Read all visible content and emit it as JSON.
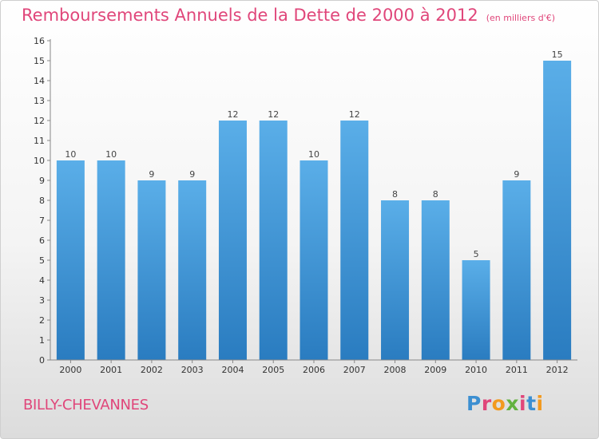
{
  "title": "Remboursements Annuels de la Dette de 2000 à 2012",
  "subtitle": "(en milliers d'€)",
  "commune": "BILLY-CHEVANNES",
  "logo": {
    "text": "Proxiti",
    "letter_colors": [
      "#3c8fd1",
      "#e0467a",
      "#f29a1f",
      "#63b23f",
      "#e0467a",
      "#3c8fd1",
      "#f29a1f"
    ]
  },
  "colors": {
    "bar_top": "#5aaee8",
    "bar_bottom": "#2a7cc0",
    "title": "#e0467a"
  },
  "chart_data": {
    "type": "bar",
    "title": "Remboursements Annuels de la Dette de 2000 à 2012",
    "subtitle": "(en milliers d'€)",
    "categories": [
      "2000",
      "2001",
      "2002",
      "2003",
      "2004",
      "2005",
      "2006",
      "2007",
      "2008",
      "2009",
      "2010",
      "2011",
      "2012"
    ],
    "values": [
      10,
      10,
      9,
      9,
      12,
      12,
      10,
      12,
      8,
      8,
      5,
      9,
      15
    ],
    "data_labels": [
      "10",
      "10",
      "9",
      "9",
      "12",
      "12",
      "10",
      "12",
      "8",
      "8",
      "5",
      "9",
      "15"
    ],
    "yticks": [
      "0",
      "1",
      "2",
      "3",
      "4",
      "5",
      "6",
      "7",
      "8",
      "9",
      "10",
      "11",
      "12",
      "13",
      "14",
      "15",
      "16"
    ],
    "ylim": [
      0,
      16
    ],
    "grid": false,
    "legend": "none"
  }
}
